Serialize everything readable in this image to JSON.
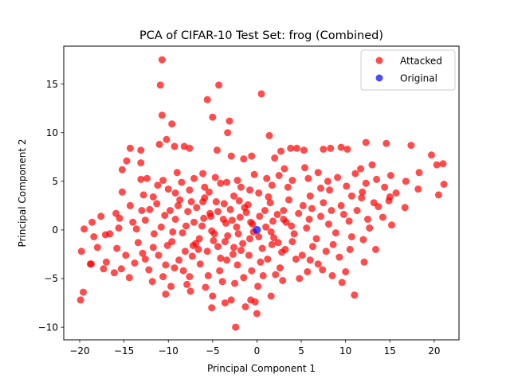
{
  "chart_data": {
    "type": "scatter",
    "title": "PCA of CIFAR-10 Test Set: frog (Combined)",
    "xlabel": "Principal Component 1",
    "ylabel": "Principal Component 2",
    "xlim": [
      -21.8,
      22.8
    ],
    "ylim": [
      -11.3,
      18.9
    ],
    "xticks": [
      -20,
      -15,
      -10,
      -5,
      0,
      5,
      10,
      15,
      20
    ],
    "yticks": [
      -10,
      -5,
      0,
      5,
      10,
      15
    ],
    "grid": false,
    "legend_position": "top-right",
    "series": [
      {
        "name": "Attacked",
        "color": "#ff0000",
        "points": [
          [
            -10.7,
            17.5
          ],
          [
            -4.3,
            14.9
          ],
          [
            -10.9,
            14.9
          ],
          [
            0.5,
            14.0
          ],
          [
            -5.6,
            13.4
          ],
          [
            -10.7,
            11.8
          ],
          [
            -5.0,
            11.6
          ],
          [
            -3.1,
            11.2
          ],
          [
            -3.3,
            10.0
          ],
          [
            -9.6,
            10.9
          ],
          [
            1.4,
            9.7
          ],
          [
            -10.2,
            9.3
          ],
          [
            -11.0,
            8.8
          ],
          [
            -9.3,
            8.6
          ],
          [
            -8.2,
            8.6
          ],
          [
            -7.6,
            8.4
          ],
          [
            -14.3,
            8.4
          ],
          [
            -13.1,
            8.2
          ],
          [
            -4.5,
            8.2
          ],
          [
            -0.6,
            7.6
          ],
          [
            -2.9,
            7.6
          ],
          [
            -1.5,
            7.3
          ],
          [
            -13.1,
            6.9
          ],
          [
            -14.7,
            7.1
          ],
          [
            2.0,
            7.4
          ],
          [
            2.7,
            8.1
          ],
          [
            3.8,
            8.4
          ],
          [
            4.5,
            8.4
          ],
          [
            5.3,
            8.2
          ],
          [
            7.5,
            8.3
          ],
          [
            8.3,
            8.4
          ],
          [
            9.5,
            8.5
          ],
          [
            10.2,
            8.3
          ],
          [
            12.3,
            9.0
          ],
          [
            14.6,
            8.9
          ],
          [
            17.4,
            8.7
          ],
          [
            19.7,
            7.7
          ],
          [
            20.3,
            6.7
          ],
          [
            21.0,
            6.8
          ],
          [
            18.3,
            5.9
          ],
          [
            15.1,
            5.6
          ],
          [
            13.0,
            6.7
          ],
          [
            11.7,
            6.3
          ],
          [
            8.0,
            5.0
          ],
          [
            6.9,
            5.9
          ],
          [
            5.4,
            6.4
          ],
          [
            3.1,
            6.3
          ],
          [
            1.1,
            5.3
          ],
          [
            -0.3,
            5.7
          ],
          [
            -15.2,
            6.2
          ],
          [
            -13.1,
            5.2
          ],
          [
            -10.6,
            5.1
          ],
          [
            -9.0,
            5.9
          ],
          [
            -6.1,
            5.8
          ],
          [
            -4.7,
            5.4
          ],
          [
            -3.4,
            4.9
          ],
          [
            -1.8,
            4.4
          ],
          [
            -15.2,
            3.9
          ],
          [
            -12.8,
            3.6
          ],
          [
            -11.7,
            3.4
          ],
          [
            -9.2,
            3.8
          ],
          [
            -7.6,
            4.1
          ],
          [
            -5.4,
            3.9
          ],
          [
            -2.6,
            3.5
          ],
          [
            0.2,
            3.8
          ],
          [
            3.5,
            4.4
          ],
          [
            6.0,
            3.5
          ],
          [
            8.2,
            4.1
          ],
          [
            10.1,
            4.5
          ],
          [
            12.3,
            4.8
          ],
          [
            14.4,
            4.4
          ],
          [
            16.8,
            5.0
          ],
          [
            18.2,
            4.2
          ],
          [
            20.5,
            3.6
          ],
          [
            21.1,
            4.7
          ],
          [
            15.0,
            3.4
          ],
          [
            13.2,
            2.8
          ],
          [
            11.8,
            3.3
          ],
          [
            9.5,
            2.5
          ],
          [
            7.5,
            2.8
          ],
          [
            5.2,
            2.5
          ],
          [
            3.0,
            2.0
          ],
          [
            1.5,
            2.8
          ],
          [
            -1.0,
            2.6
          ],
          [
            -3.7,
            2.7
          ],
          [
            -6.1,
            2.9
          ],
          [
            -8.9,
            2.5
          ],
          [
            -11.3,
            2.7
          ],
          [
            -14.3,
            2.5
          ],
          [
            -15.9,
            1.7
          ],
          [
            -17.6,
            1.4
          ],
          [
            -18.6,
            0.8
          ],
          [
            -19.5,
            0.1
          ],
          [
            -18.4,
            -0.7
          ],
          [
            -17.1,
            -0.5
          ],
          [
            -15.6,
            0.2
          ],
          [
            -14.0,
            0.8
          ],
          [
            -12.6,
            1.0
          ],
          [
            -10.8,
            0.3
          ],
          [
            -9.2,
            1.1
          ],
          [
            -7.1,
            0.8
          ],
          [
            -5.2,
            1.4
          ],
          [
            -3.5,
            0.7
          ],
          [
            -1.9,
            1.3
          ],
          [
            -0.5,
            0.6
          ],
          [
            1.8,
            0.9
          ],
          [
            3.9,
            0.4
          ],
          [
            5.9,
            1.1
          ],
          [
            8.1,
            0.6
          ],
          [
            10.4,
            0.9
          ],
          [
            12.7,
            0.2
          ],
          [
            15.2,
            0.5
          ],
          [
            16.7,
            2.3
          ],
          [
            12.0,
            -1.0
          ],
          [
            10.5,
            -2.0
          ],
          [
            8.6,
            -1.5
          ],
          [
            6.3,
            -1.7
          ],
          [
            4.0,
            -1.2
          ],
          [
            1.7,
            -1.5
          ],
          [
            -0.8,
            -0.9
          ],
          [
            -2.6,
            -1.8
          ],
          [
            -4.9,
            -1.1
          ],
          [
            -7.2,
            -1.6
          ],
          [
            -9.6,
            -1.2
          ],
          [
            -11.7,
            -1.8
          ],
          [
            -13.4,
            -1.3
          ],
          [
            -15.8,
            -1.9
          ],
          [
            -18.0,
            -1.8
          ],
          [
            -19.8,
            -2.2
          ],
          [
            -18.8,
            -3.5
          ],
          [
            -17.0,
            -3.3
          ],
          [
            -15.3,
            -4.0
          ],
          [
            -13.8,
            -3.4
          ],
          [
            -12.2,
            -4.1
          ],
          [
            -10.3,
            -3.6
          ],
          [
            -8.3,
            -4.2
          ],
          [
            -6.4,
            -3.5
          ],
          [
            -4.2,
            -4.2
          ],
          [
            -2.2,
            -3.6
          ],
          [
            0.4,
            -3.3
          ],
          [
            2.6,
            -3.9
          ],
          [
            4.4,
            -3.0
          ],
          [
            6.9,
            -3.5
          ],
          [
            9.3,
            -2.8
          ],
          [
            12.1,
            -3.3
          ],
          [
            13.4,
            -2.0
          ],
          [
            -16.1,
            -4.4
          ],
          [
            -14.4,
            -4.9
          ],
          [
            -11.8,
            -5.3
          ],
          [
            -9.7,
            -5.8
          ],
          [
            -7.9,
            -5.6
          ],
          [
            -5.8,
            -5.9
          ],
          [
            -3.9,
            -5.3
          ],
          [
            -1.5,
            -4.9
          ],
          [
            0.7,
            -4.7
          ],
          [
            2.9,
            -5.2
          ],
          [
            5.7,
            -4.3
          ],
          [
            8.5,
            -4.7
          ],
          [
            10.0,
            -4.3
          ],
          [
            -17.3,
            -4.0
          ],
          [
            -10.3,
            -6.6
          ],
          [
            -7.5,
            -6.3
          ],
          [
            -5.0,
            -6.8
          ],
          [
            -2.9,
            -7.2
          ],
          [
            -0.2,
            -7.4
          ],
          [
            1.6,
            -6.8
          ],
          [
            9.6,
            -5.4
          ],
          [
            11.0,
            -6.7
          ],
          [
            -5.1,
            -8.0
          ],
          [
            -3.6,
            -7.5
          ],
          [
            -1.3,
            -7.9
          ],
          [
            -0.7,
            -7.2
          ],
          [
            -2.4,
            -10.0
          ],
          [
            0.0,
            -8.6
          ],
          [
            -19.9,
            -7.2
          ],
          [
            -19.6,
            -6.4
          ],
          [
            -18.7,
            -3.5
          ],
          [
            -16.6,
            -0.4
          ],
          [
            -15.5,
            1.2
          ],
          [
            -14.8,
            -2.6
          ],
          [
            -13.0,
            2.0
          ],
          [
            -12.9,
            -2.4
          ],
          [
            -11.6,
            -0.4
          ],
          [
            -10.1,
            -1.6
          ],
          [
            -9.8,
            2.0
          ],
          [
            -8.7,
            3.1
          ],
          [
            -8.4,
            -0.3
          ],
          [
            -7.8,
            1.9
          ],
          [
            -7.3,
            -2.7
          ],
          [
            -6.8,
            2.3
          ],
          [
            -6.5,
            -0.9
          ],
          [
            -6.2,
            0.4
          ],
          [
            -5.9,
            3.3
          ],
          [
            -5.6,
            -2.2
          ],
          [
            -5.3,
            1.7
          ],
          [
            -4.8,
            -0.4
          ],
          [
            -4.6,
            2.9
          ],
          [
            -4.1,
            -2.9
          ],
          [
            -3.8,
            1.1
          ],
          [
            -3.3,
            -0.6
          ],
          [
            -3.0,
            2.1
          ],
          [
            -2.7,
            -2.5
          ],
          [
            -2.3,
            0.3
          ],
          [
            -2.0,
            3.0
          ],
          [
            -1.6,
            -1.4
          ],
          [
            -1.2,
            1.8
          ],
          [
            -0.9,
            -2.6
          ],
          [
            -0.4,
            -0.2
          ],
          [
            0.3,
            1.4
          ],
          [
            0.6,
            -1.9
          ],
          [
            1.0,
            0.3
          ],
          [
            1.3,
            3.4
          ],
          [
            1.9,
            -0.8
          ],
          [
            2.3,
            1.6
          ],
          [
            2.8,
            -2.3
          ],
          [
            3.3,
            0.8
          ],
          [
            3.6,
            3.1
          ],
          [
            4.2,
            -0.4
          ],
          [
            4.7,
            1.7
          ],
          [
            5.1,
            -2.6
          ],
          [
            5.6,
            0.2
          ],
          [
            6.2,
            2.2
          ],
          [
            6.7,
            -0.9
          ],
          [
            7.2,
            1.4
          ],
          [
            7.8,
            -2.2
          ],
          [
            8.4,
            2.0
          ],
          [
            8.9,
            -0.3
          ],
          [
            9.8,
            1.6
          ],
          [
            10.7,
            -0.7
          ],
          [
            11.3,
            2.0
          ],
          [
            11.9,
            3.9
          ],
          [
            12.5,
            1.1
          ],
          [
            13.7,
            2.4
          ],
          [
            14.2,
            1.3
          ],
          [
            14.9,
            3.0
          ],
          [
            -12.4,
            5.3
          ],
          [
            -11.2,
            4.6
          ],
          [
            -10.0,
            4.2
          ],
          [
            -8.5,
            4.9
          ],
          [
            -7.1,
            5.3
          ],
          [
            -5.9,
            4.4
          ],
          [
            -4.1,
            4.8
          ],
          [
            -2.2,
            5.1
          ],
          [
            -0.8,
            4.1
          ],
          [
            1.7,
            4.6
          ],
          [
            2.5,
            5.6
          ],
          [
            4.0,
            5.1
          ],
          [
            5.8,
            5.3
          ],
          [
            7.2,
            4.3
          ],
          [
            9.1,
            5.4
          ],
          [
            10.7,
            3.5
          ],
          [
            11.1,
            5.8
          ],
          [
            13.5,
            5.2
          ],
          [
            15.7,
            3.8
          ],
          [
            -8.8,
            -3.1
          ],
          [
            -7.6,
            -4.8
          ],
          [
            -6.6,
            -2.0
          ],
          [
            -5.5,
            -4.7
          ],
          [
            -4.4,
            -1.7
          ],
          [
            -3.4,
            -3.1
          ],
          [
            -2.5,
            -5.5
          ],
          [
            -1.8,
            -2.1
          ],
          [
            -0.6,
            -4.2
          ],
          [
            0.1,
            -5.8
          ],
          [
            1.2,
            -3.0
          ],
          [
            2.1,
            -4.6
          ],
          [
            3.2,
            -2.0
          ],
          [
            4.8,
            -5.0
          ],
          [
            6.0,
            -3.1
          ],
          [
            7.4,
            -4.1
          ],
          [
            -12.6,
            -3.0
          ],
          [
            -11.1,
            -2.6
          ],
          [
            -10.6,
            -4.8
          ],
          [
            -9.3,
            -3.9
          ],
          [
            -8.1,
            -2.2
          ],
          [
            -13.6,
            0.1
          ],
          [
            -12.1,
            2.1
          ],
          [
            -10.4,
            1.5
          ],
          [
            -9.5,
            -0.2
          ],
          [
            -8.0,
            0.4
          ],
          [
            -7.4,
            2.9
          ],
          [
            -6.9,
            -1.4
          ],
          [
            -6.0,
            1.2
          ],
          [
            -5.1,
            -0.1
          ],
          [
            -4.4,
            1.9
          ],
          [
            -3.6,
            -1.2
          ],
          [
            -2.8,
            1.0
          ],
          [
            -2.1,
            -0.4
          ],
          [
            -1.4,
            2.3
          ],
          [
            -0.7,
            0.8
          ],
          [
            0.2,
            -0.7
          ],
          [
            0.9,
            2.0
          ],
          [
            1.6,
            -0.2
          ],
          [
            2.4,
            -1.3
          ],
          [
            3.0,
            1.1
          ]
        ]
      },
      {
        "name": "Original",
        "color": "#0000ff",
        "points": [
          [
            0.0,
            0.0
          ]
        ]
      }
    ]
  }
}
